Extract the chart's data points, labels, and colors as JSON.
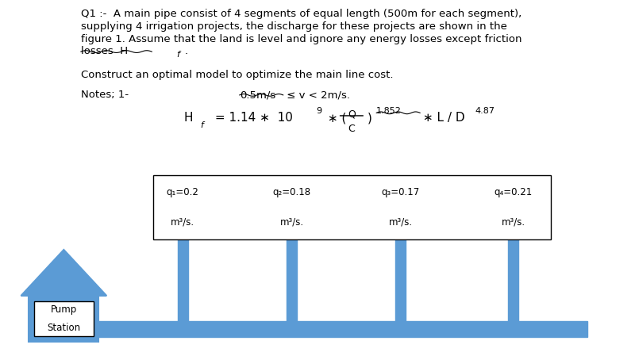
{
  "q_labels": [
    "q₁=0.2",
    "q₂=0.18",
    "q₃=0.17",
    "q₄=0.21"
  ],
  "q_units": [
    "m³/s.",
    "m³/s.",
    "m³/s.",
    "m³/s."
  ],
  "pump_label1": "Pump",
  "pump_label2": "Station",
  "bg_color": "#ffffff",
  "text_color": "#000000",
  "pipe_blue": "#5b9bd5"
}
